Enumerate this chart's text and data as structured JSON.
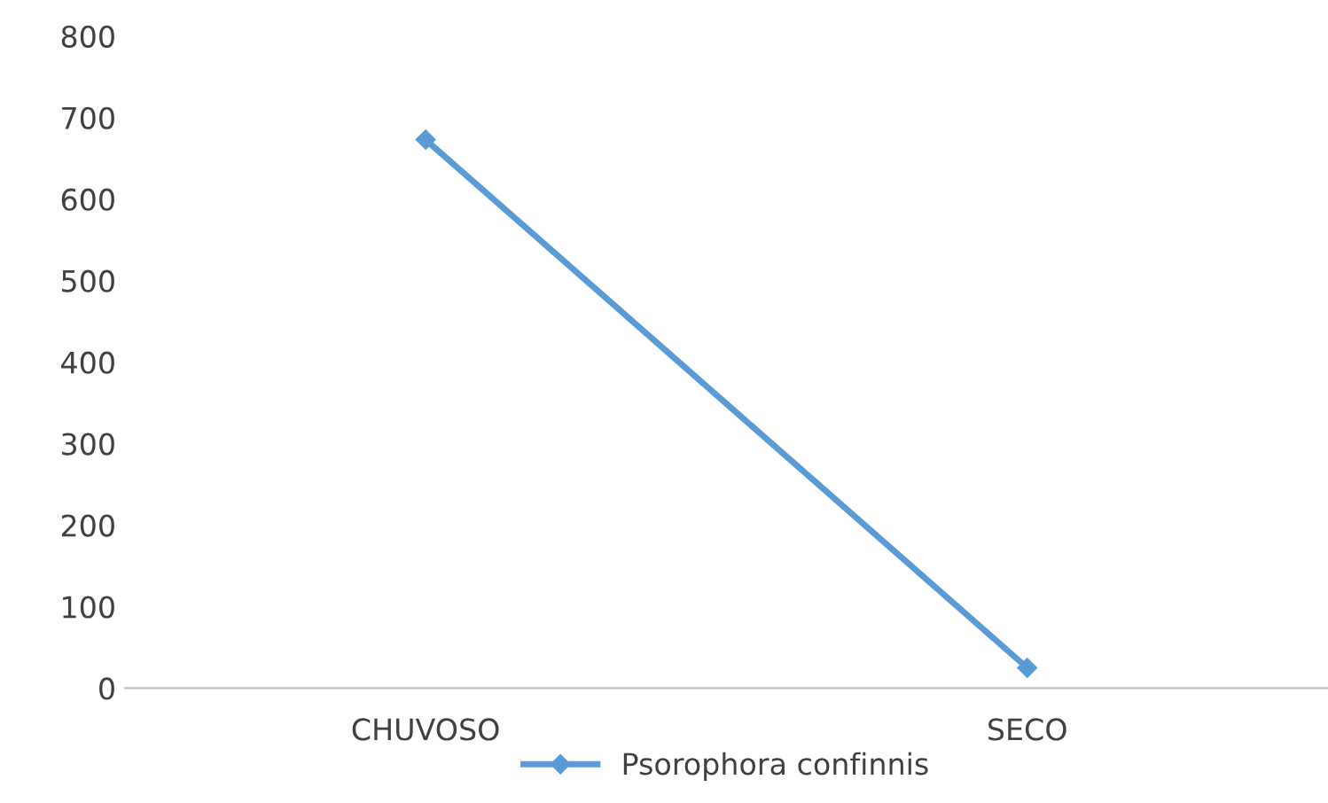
{
  "chart_data": {
    "type": "line",
    "categories": [
      "CHUVOSO",
      "SECO"
    ],
    "series": [
      {
        "name": "Psorophora confinnis",
        "color": "#5b9bd5",
        "values": [
          673,
          25
        ]
      }
    ],
    "ylim": [
      0,
      800
    ],
    "yticks": [
      0,
      100,
      200,
      300,
      400,
      500,
      600,
      700,
      800
    ],
    "grid": false,
    "legend": "bottom",
    "marker": "diamond",
    "line_style": "solid"
  }
}
